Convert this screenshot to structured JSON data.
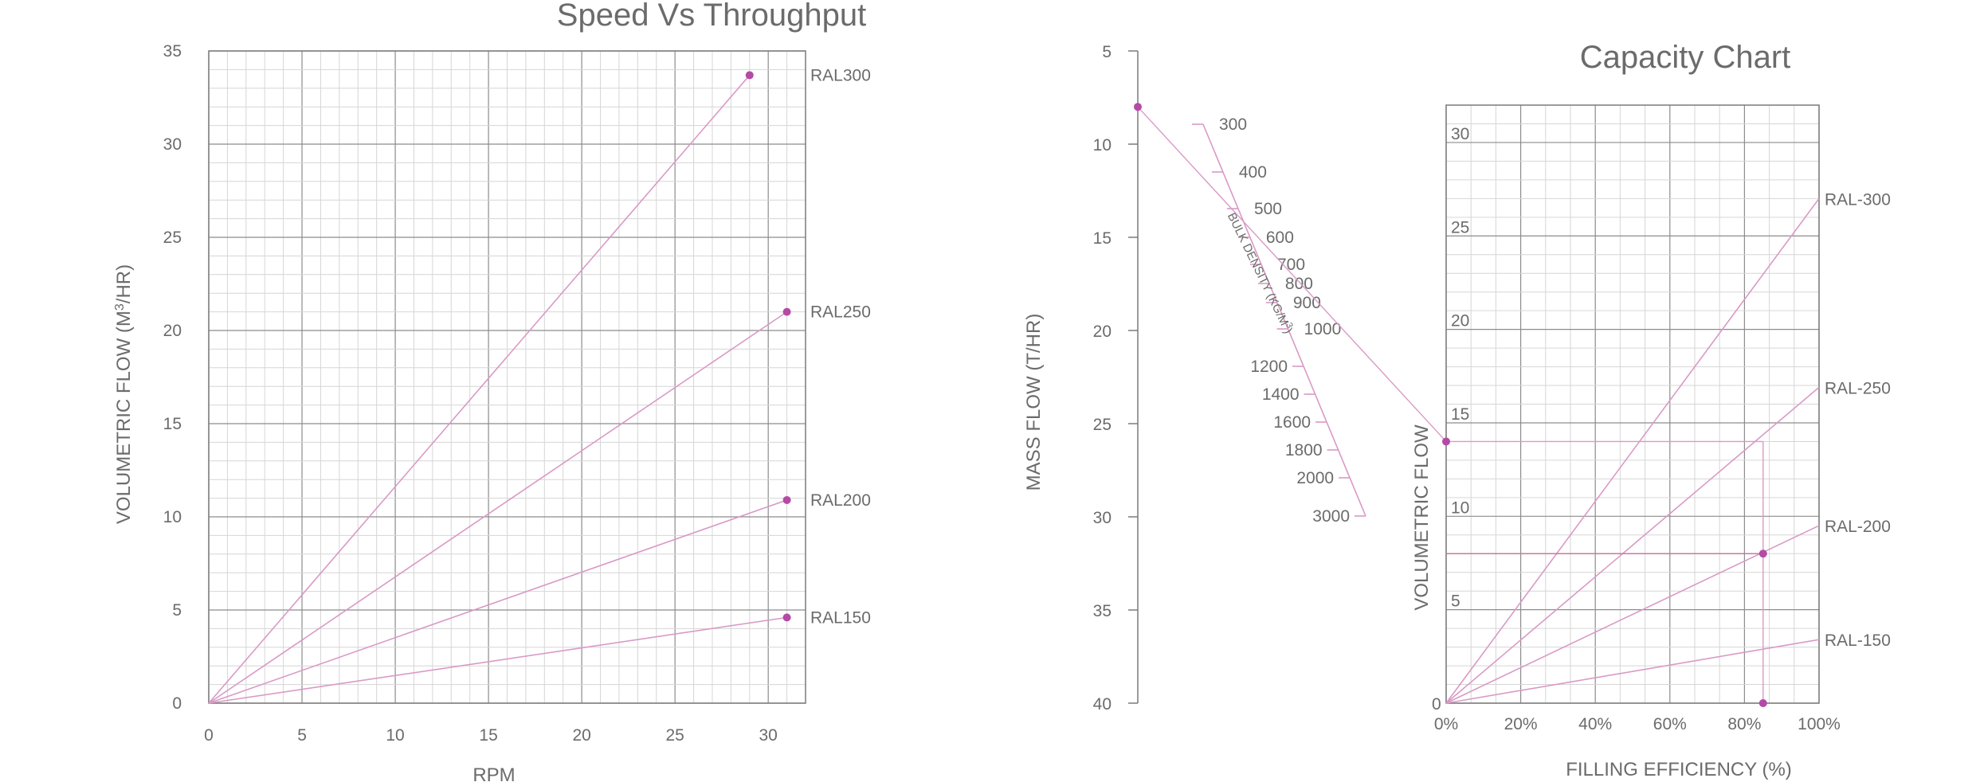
{
  "colors": {
    "series": "#d99ac6",
    "marker": "#b44aa6",
    "grid_major": "#8c8c8c",
    "grid_minor": "#d6d6d6",
    "text": "#6b6b6b"
  },
  "chart_data": [
    {
      "type": "line",
      "title": "Speed Vs Throughput",
      "xlabel": "RPM",
      "ylabel_prefix": "VOLUMETRIC FLOW (M",
      "ylabel_superscript": "3",
      "ylabel_suffix": "/HR)",
      "xlim": [
        0,
        32
      ],
      "ylim": [
        0,
        35
      ],
      "x_ticks": [
        0,
        5,
        10,
        15,
        20,
        25,
        30
      ],
      "y_ticks": [
        0,
        5,
        10,
        15,
        20,
        25,
        30,
        35
      ],
      "grid": true,
      "series": [
        {
          "name": "RAL300",
          "x": [
            0,
            29
          ],
          "y": [
            0,
            33.7
          ]
        },
        {
          "name": "RAL250",
          "x": [
            0,
            31
          ],
          "y": [
            0,
            21.0
          ]
        },
        {
          "name": "RAL200",
          "x": [
            0,
            31
          ],
          "y": [
            0,
            10.9
          ]
        },
        {
          "name": "RAL150",
          "x": [
            0,
            31
          ],
          "y": [
            0,
            4.6
          ]
        }
      ]
    },
    {
      "type": "nomogram",
      "ylabel": "MASS FLOW (T/HR)",
      "ylim": [
        5,
        40
      ],
      "y_ticks": [
        5,
        10,
        15,
        20,
        25,
        30,
        35,
        40
      ],
      "density_scale_label": "BULK DENSITY (KG/M",
      "density_scale_superscript": "3",
      "density_scale_suffix": ")",
      "density_ticks": [
        "300",
        "400",
        "500",
        "600",
        "700",
        "800",
        "900",
        "1000",
        "1200",
        "1400",
        "1600",
        "1800",
        "2000",
        "3000"
      ],
      "example": {
        "mass_flow": 8.0,
        "bulk_density": 550,
        "volumetric_flow": 14.0
      }
    },
    {
      "type": "line",
      "title": "Capacity Chart",
      "xlabel": "FILLING EFFICIENCY (%)",
      "ylabel": "VOLUMETRIC FLOW",
      "xlim": [
        0,
        100
      ],
      "ylim": [
        0,
        32
      ],
      "x_ticks": [
        "0%",
        "20%",
        "40%",
        "60%",
        "80%",
        "100%"
      ],
      "y_ticks": [
        0,
        5,
        10,
        15,
        20,
        25,
        30
      ],
      "grid": true,
      "series": [
        {
          "name": "RAL-300",
          "x": [
            0,
            100
          ],
          "y": [
            0,
            27.0
          ]
        },
        {
          "name": "RAL-250",
          "x": [
            0,
            100
          ],
          "y": [
            0,
            16.9
          ]
        },
        {
          "name": "RAL-200",
          "x": [
            0,
            100
          ],
          "y": [
            0,
            9.5
          ]
        },
        {
          "name": "RAL-150",
          "x": [
            0,
            100
          ],
          "y": [
            0,
            3.4
          ]
        }
      ],
      "markers": [
        {
          "x": 0,
          "y": 14.0
        },
        {
          "x": 85,
          "y": 8.0
        },
        {
          "x": 85,
          "y": 0
        }
      ]
    }
  ]
}
